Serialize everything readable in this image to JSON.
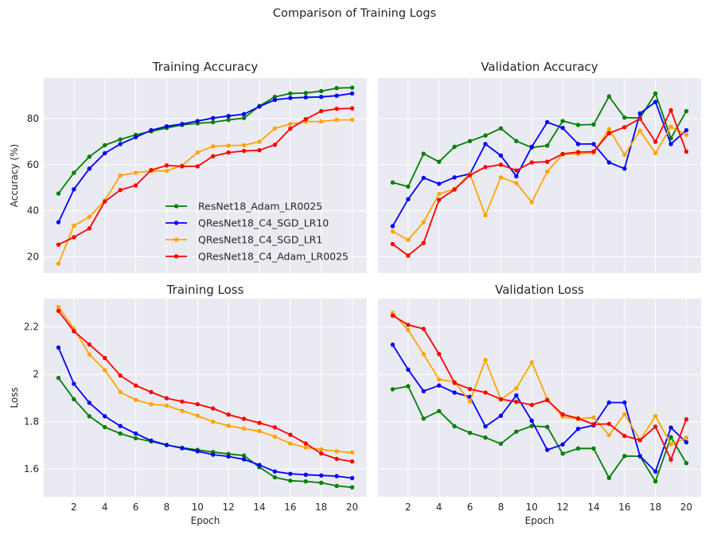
{
  "suptitle": "Comparison of Training Logs",
  "colors": {
    "panel_bg": "#eaeaf2",
    "grid": "#ffffff",
    "series": [
      "#008000",
      "#0000ff",
      "#ffa500",
      "#ff0000"
    ]
  },
  "chart_data": [
    {
      "id": "train_acc",
      "type": "line",
      "title": "Training Accuracy",
      "xlabel": "",
      "ylabel": "Accuracy (%)",
      "x": [
        1,
        2,
        3,
        4,
        5,
        6,
        7,
        8,
        9,
        10,
        11,
        12,
        13,
        14,
        15,
        16,
        17,
        18,
        19,
        20
      ],
      "xticks": [
        2,
        4,
        6,
        8,
        10,
        12,
        14,
        16,
        18,
        20
      ],
      "show_xtick_labels": false,
      "xlim": [
        0.05,
        20.95
      ],
      "yticks": [
        20,
        40,
        60,
        80
      ],
      "show_ytick_labels": true,
      "ylim": [
        12.9,
        97.7
      ],
      "legend": "lower-right",
      "series": [
        {
          "name": "ResNet18_Adam_LR0025",
          "values": [
            47.5,
            56.5,
            63.5,
            68.5,
            71.0,
            73.0,
            74.5,
            76.0,
            77.3,
            78.0,
            78.5,
            79.5,
            80.3,
            85.5,
            89.5,
            91.0,
            91.2,
            92.0,
            93.3,
            93.5
          ]
        },
        {
          "name": "QResNet18_C4_SGD_LR10",
          "values": [
            35.0,
            49.3,
            58.3,
            65.0,
            69.0,
            72.0,
            75.0,
            76.7,
            77.7,
            79.0,
            80.3,
            81.2,
            82.0,
            85.3,
            88.2,
            89.0,
            89.3,
            89.5,
            90.0,
            91.0
          ]
        },
        {
          "name": "QResNet18_C4_SGD_LR1",
          "values": [
            17.0,
            33.5,
            37.3,
            44.5,
            55.3,
            56.5,
            57.3,
            57.3,
            59.7,
            65.3,
            68.0,
            68.3,
            68.5,
            70.0,
            75.8,
            77.7,
            78.7,
            78.8,
            79.5,
            79.5
          ]
        },
        {
          "name": "QResNet18_C4_Adam_LR0025",
          "values": [
            25.3,
            28.5,
            32.3,
            44.0,
            49.0,
            51.0,
            57.7,
            59.7,
            59.3,
            59.3,
            63.7,
            65.3,
            66.0,
            66.3,
            68.7,
            75.7,
            79.8,
            83.3,
            84.3,
            84.5
          ]
        }
      ]
    },
    {
      "id": "val_acc",
      "type": "line",
      "title": "Validation Accuracy",
      "xlabel": "",
      "ylabel": "",
      "x": [
        1,
        2,
        3,
        4,
        5,
        6,
        7,
        8,
        9,
        10,
        11,
        12,
        13,
        14,
        15,
        16,
        17,
        18,
        19,
        20
      ],
      "xticks": [
        2,
        4,
        6,
        8,
        10,
        12,
        14,
        16,
        18,
        20
      ],
      "show_xtick_labels": false,
      "xlim": [
        0.05,
        20.95
      ],
      "yticks": [
        20,
        40,
        60,
        80
      ],
      "show_ytick_labels": false,
      "ylim": [
        12.9,
        97.7
      ],
      "legend": "none",
      "series": [
        {
          "name": "ResNet18_Adam_LR0025",
          "values": [
            52.3,
            50.5,
            64.8,
            61.3,
            67.8,
            70.3,
            72.7,
            75.8,
            70.3,
            67.5,
            68.3,
            79.0,
            77.3,
            77.5,
            89.7,
            80.5,
            80.3,
            91.0,
            71.5,
            83.3
          ]
        },
        {
          "name": "QResNet18_C4_SGD_LR10",
          "values": [
            33.3,
            45.0,
            54.3,
            51.7,
            54.5,
            56.0,
            69.0,
            64.0,
            55.0,
            67.8,
            78.5,
            76.0,
            69.0,
            69.0,
            61.0,
            58.3,
            82.3,
            87.3,
            69.0,
            75.0
          ]
        },
        {
          "name": "QResNet18_C4_SGD_LR1",
          "values": [
            31.0,
            27.3,
            35.0,
            47.3,
            49.5,
            56.0,
            38.0,
            54.5,
            52.0,
            43.7,
            57.0,
            64.5,
            64.7,
            65.3,
            75.5,
            64.3,
            74.8,
            65.0,
            76.5,
            73.0
          ]
        },
        {
          "name": "QResNet18_C4_Adam_LR0025",
          "values": [
            25.5,
            20.5,
            26.0,
            44.7,
            49.2,
            55.5,
            59.0,
            60.0,
            57.5,
            61.0,
            61.3,
            64.7,
            65.5,
            65.7,
            73.7,
            76.3,
            80.0,
            70.0,
            83.7,
            65.7
          ]
        }
      ]
    },
    {
      "id": "train_loss",
      "type": "line",
      "title": "Training Loss",
      "xlabel": "Epoch",
      "ylabel": "Loss",
      "x": [
        1,
        2,
        3,
        4,
        5,
        6,
        7,
        8,
        9,
        10,
        11,
        12,
        13,
        14,
        15,
        16,
        17,
        18,
        19,
        20
      ],
      "xticks": [
        2,
        4,
        6,
        8,
        10,
        12,
        14,
        16,
        18,
        20
      ],
      "show_xtick_labels": true,
      "xlim": [
        0.05,
        20.95
      ],
      "yticks": [
        1.6,
        1.8,
        2.0,
        2.2
      ],
      "show_ytick_labels": true,
      "ylim": [
        1.483,
        2.32
      ],
      "legend": "none",
      "series": [
        {
          "name": "ResNet18_Adam_LR0025",
          "values": [
            1.985,
            1.895,
            1.823,
            1.777,
            1.75,
            1.73,
            1.717,
            1.701,
            1.69,
            1.681,
            1.672,
            1.664,
            1.657,
            1.608,
            1.565,
            1.551,
            1.548,
            1.542,
            1.529,
            1.523
          ]
        },
        {
          "name": "QResNet18_C4_SGD_LR10",
          "values": [
            2.113,
            1.96,
            1.88,
            1.823,
            1.782,
            1.75,
            1.72,
            1.702,
            1.688,
            1.675,
            1.661,
            1.653,
            1.641,
            1.617,
            1.59,
            1.58,
            1.576,
            1.573,
            1.57,
            1.562
          ]
        },
        {
          "name": "QResNet18_C4_SGD_LR1",
          "values": [
            2.285,
            2.193,
            2.084,
            2.018,
            1.925,
            1.892,
            1.874,
            1.868,
            1.846,
            1.825,
            1.8,
            1.783,
            1.771,
            1.76,
            1.737,
            1.708,
            1.691,
            1.683,
            1.675,
            1.67
          ]
        },
        {
          "name": "QResNet18_C4_Adam_LR0025",
          "values": [
            2.268,
            2.182,
            2.126,
            2.069,
            1.995,
            1.953,
            1.925,
            1.899,
            1.885,
            1.874,
            1.856,
            1.83,
            1.812,
            1.795,
            1.776,
            1.745,
            1.708,
            1.666,
            1.643,
            1.632
          ]
        }
      ]
    },
    {
      "id": "val_loss",
      "type": "line",
      "title": "Validation Loss",
      "xlabel": "Epoch",
      "ylabel": "",
      "x": [
        1,
        2,
        3,
        4,
        5,
        6,
        7,
        8,
        9,
        10,
        11,
        12,
        13,
        14,
        15,
        16,
        17,
        18,
        19,
        20
      ],
      "xticks": [
        2,
        4,
        6,
        8,
        10,
        12,
        14,
        16,
        18,
        20
      ],
      "show_xtick_labels": true,
      "xlim": [
        0.05,
        20.95
      ],
      "yticks": [
        1.6,
        1.8,
        2.0,
        2.2
      ],
      "show_ytick_labels": false,
      "ylim": [
        1.483,
        2.32
      ],
      "legend": "none",
      "series": [
        {
          "name": "ResNet18_Adam_LR0025",
          "values": [
            1.937,
            1.95,
            1.813,
            1.845,
            1.781,
            1.753,
            1.733,
            1.707,
            1.758,
            1.782,
            1.778,
            1.665,
            1.687,
            1.687,
            1.563,
            1.655,
            1.654,
            1.548,
            1.735,
            1.625
          ]
        },
        {
          "name": "QResNet18_C4_SGD_LR10",
          "values": [
            2.125,
            2.02,
            1.929,
            1.953,
            1.923,
            1.905,
            1.78,
            1.825,
            1.911,
            1.804,
            1.681,
            1.704,
            1.77,
            1.785,
            1.881,
            1.881,
            1.655,
            1.59,
            1.775,
            1.713
          ]
        },
        {
          "name": "QResNet18_C4_SGD_LR1",
          "values": [
            2.26,
            2.187,
            2.085,
            1.978,
            1.969,
            1.885,
            2.061,
            1.893,
            1.941,
            2.051,
            1.896,
            1.821,
            1.811,
            1.818,
            1.743,
            1.832,
            1.722,
            1.824,
            1.705,
            1.732
          ]
        },
        {
          "name": "QResNet18_C4_Adam_LR0025",
          "values": [
            2.248,
            2.209,
            2.192,
            2.086,
            1.964,
            1.938,
            1.923,
            1.895,
            1.884,
            1.871,
            1.891,
            1.831,
            1.814,
            1.789,
            1.791,
            1.74,
            1.722,
            1.779,
            1.64,
            1.81
          ]
        }
      ]
    }
  ]
}
